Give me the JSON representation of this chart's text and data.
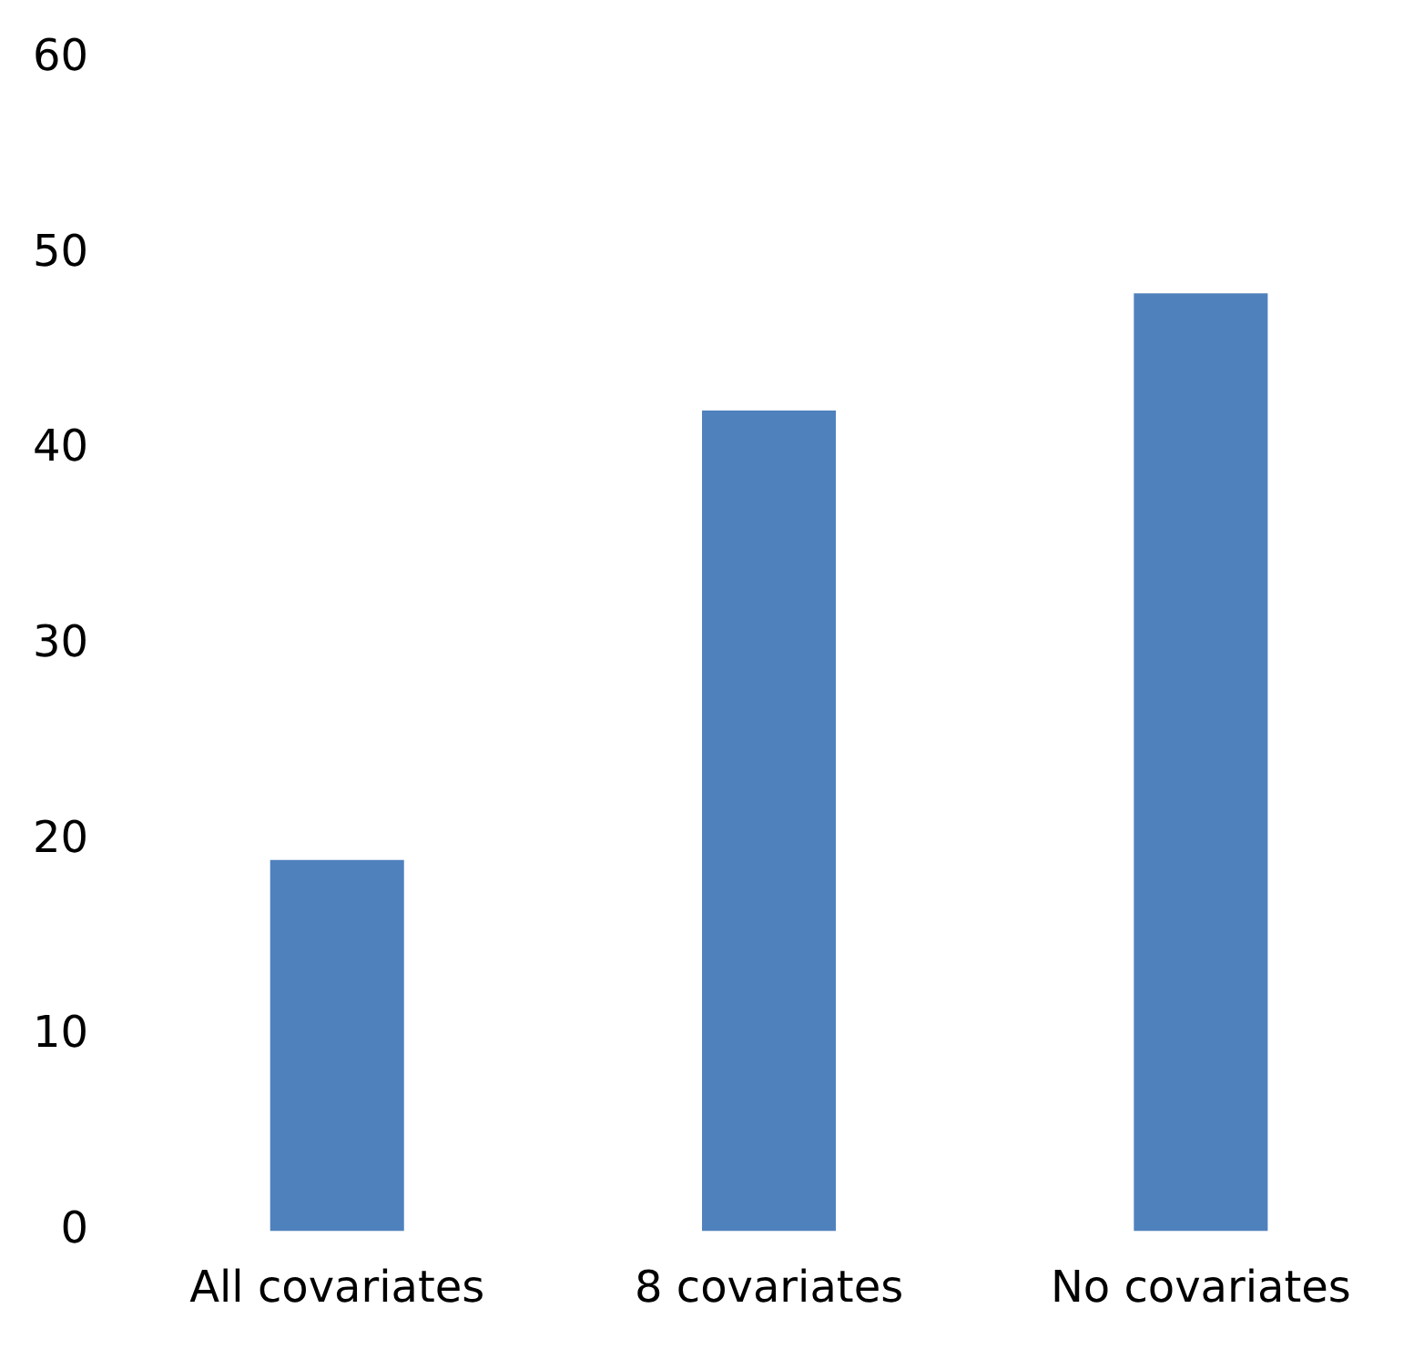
{
  "chart_data": {
    "type": "bar",
    "categories": [
      "All covariates",
      "8 covariates",
      "No covariates"
    ],
    "values": [
      19,
      42,
      48
    ],
    "color": "#4f81bd",
    "ylim": [
      0,
      60
    ],
    "yticks": [
      0,
      10,
      20,
      30,
      40,
      50,
      60
    ],
    "grid": false,
    "legend": false
  }
}
